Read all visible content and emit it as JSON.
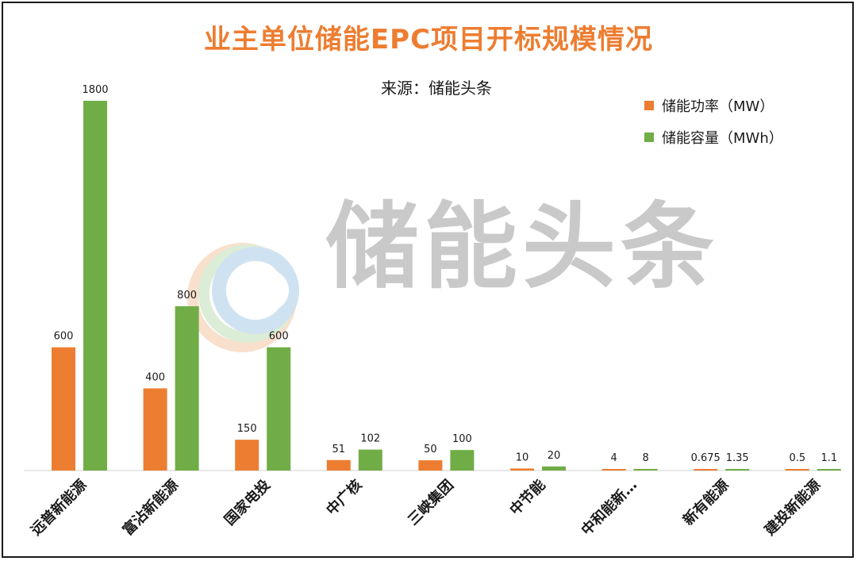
{
  "chart_data": {
    "type": "bar",
    "title": "业主单位储能EPC项目开标规模情况",
    "subtitle": "来源：储能头条",
    "categories": [
      "远普新能源",
      "富沾新能源",
      "国家电投",
      "中广核",
      "三峡集团",
      "中节能",
      "中和能新…",
      "新有能源",
      "建投新能源"
    ],
    "series": [
      {
        "name": "储能功率（MW）",
        "color": "#ED7D31",
        "values": [
          600,
          400,
          150,
          51,
          50,
          10,
          4,
          0.675,
          0.5
        ],
        "labels": [
          "600",
          "400",
          "150",
          "51",
          "50",
          "10",
          "4",
          "0.675",
          "0.5"
        ]
      },
      {
        "name": "储能容量（MWh）",
        "color": "#70AD47",
        "values": [
          1800,
          800,
          600,
          102,
          100,
          20,
          8,
          1.35,
          1.1
        ],
        "labels": [
          "1800",
          "800",
          "600",
          "102",
          "100",
          "20",
          "8",
          "1.35",
          "1.1"
        ]
      }
    ],
    "ylim": [
      0,
      1800
    ],
    "grid": false,
    "legend_position": "top-right"
  },
  "watermark": {
    "text": "储能头条"
  }
}
